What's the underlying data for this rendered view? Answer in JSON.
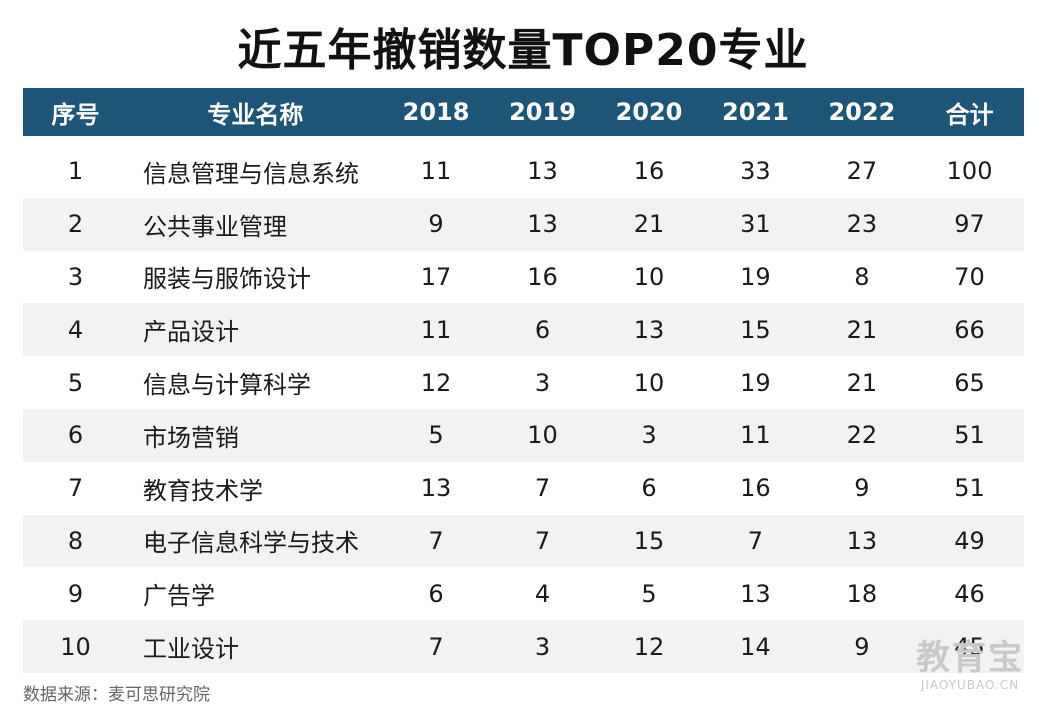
{
  "title": "近五年撤销数量TOP20专业",
  "table": {
    "headers": [
      "序号",
      "专业名称",
      "2018",
      "2019",
      "2020",
      "2021",
      "2022",
      "合计"
    ],
    "rows": [
      [
        "1",
        "信息管理与信息系统",
        "11",
        "13",
        "16",
        "33",
        "27",
        "100"
      ],
      [
        "2",
        "公共事业管理",
        "9",
        "13",
        "21",
        "31",
        "23",
        "97"
      ],
      [
        "3",
        "服装与服饰设计",
        "17",
        "16",
        "10",
        "19",
        "8",
        "70"
      ],
      [
        "4",
        "产品设计",
        "11",
        "6",
        "13",
        "15",
        "21",
        "66"
      ],
      [
        "5",
        "信息与计算科学",
        "12",
        "3",
        "10",
        "19",
        "21",
        "65"
      ],
      [
        "6",
        "市场营销",
        "5",
        "10",
        "3",
        "11",
        "22",
        "51"
      ],
      [
        "7",
        "教育技术学",
        "13",
        "7",
        "6",
        "16",
        "9",
        "51"
      ],
      [
        "8",
        "电子信息科学与技术",
        "7",
        "7",
        "15",
        "7",
        "13",
        "49"
      ],
      [
        "9",
        "广告学",
        "6",
        "4",
        "5",
        "13",
        "18",
        "46"
      ],
      [
        "10",
        "工业设计",
        "7",
        "3",
        "12",
        "14",
        "9",
        "45"
      ]
    ]
  },
  "source": "数据来源：麦可思研究院",
  "watermark": {
    "logo": "教育宝",
    "url": "JIAOYUBAO.CN"
  },
  "colors": {
    "header_bg": "#1d5579",
    "header_text": "#ffffff",
    "stripe": "#f2f2f2"
  }
}
